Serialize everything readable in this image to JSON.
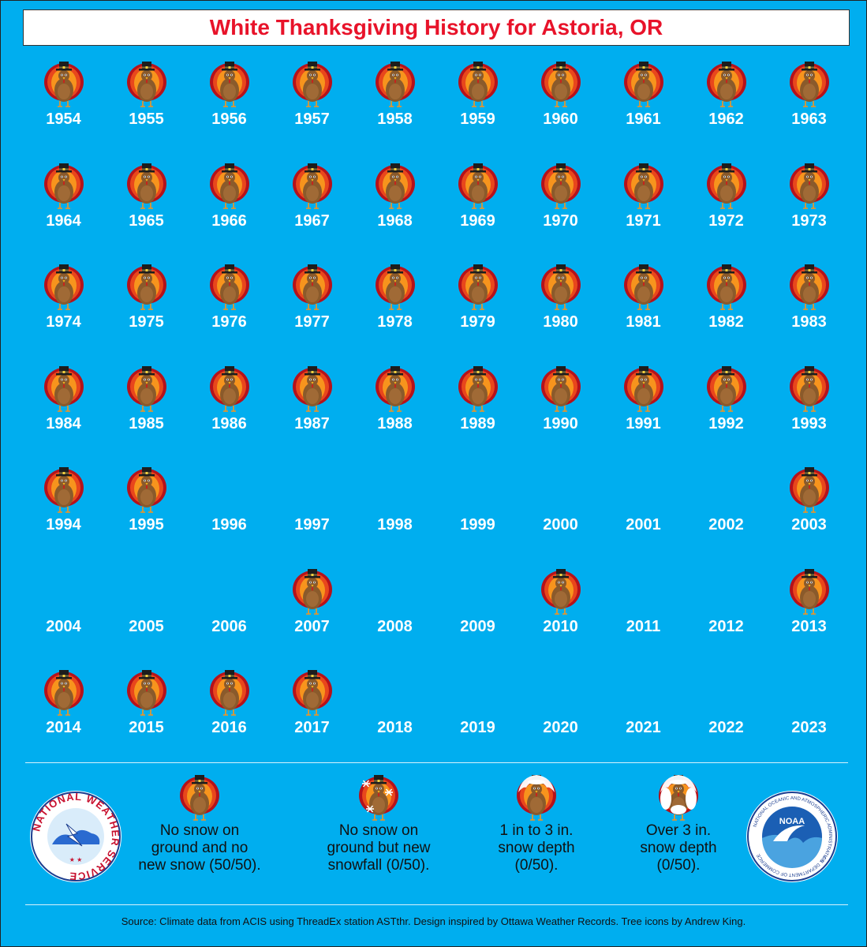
{
  "title": "White Thanksgiving History for Astoria, OR",
  "years": [
    {
      "year": "1954",
      "category": "no-snow"
    },
    {
      "year": "1955",
      "category": "no-snow"
    },
    {
      "year": "1956",
      "category": "no-snow"
    },
    {
      "year": "1957",
      "category": "no-snow"
    },
    {
      "year": "1958",
      "category": "no-snow"
    },
    {
      "year": "1959",
      "category": "no-snow"
    },
    {
      "year": "1960",
      "category": "no-snow"
    },
    {
      "year": "1961",
      "category": "no-snow"
    },
    {
      "year": "1962",
      "category": "no-snow"
    },
    {
      "year": "1963",
      "category": "no-snow"
    },
    {
      "year": "1964",
      "category": "no-snow"
    },
    {
      "year": "1965",
      "category": "no-snow"
    },
    {
      "year": "1966",
      "category": "no-snow"
    },
    {
      "year": "1967",
      "category": "no-snow"
    },
    {
      "year": "1968",
      "category": "no-snow"
    },
    {
      "year": "1969",
      "category": "no-snow"
    },
    {
      "year": "1970",
      "category": "no-snow"
    },
    {
      "year": "1971",
      "category": "no-snow"
    },
    {
      "year": "1972",
      "category": "no-snow"
    },
    {
      "year": "1973",
      "category": "no-snow"
    },
    {
      "year": "1974",
      "category": "no-snow"
    },
    {
      "year": "1975",
      "category": "no-snow"
    },
    {
      "year": "1976",
      "category": "no-snow"
    },
    {
      "year": "1977",
      "category": "no-snow"
    },
    {
      "year": "1978",
      "category": "no-snow"
    },
    {
      "year": "1979",
      "category": "no-snow"
    },
    {
      "year": "1980",
      "category": "no-snow"
    },
    {
      "year": "1981",
      "category": "no-snow"
    },
    {
      "year": "1982",
      "category": "no-snow"
    },
    {
      "year": "1983",
      "category": "no-snow"
    },
    {
      "year": "1984",
      "category": "no-snow"
    },
    {
      "year": "1985",
      "category": "no-snow"
    },
    {
      "year": "1986",
      "category": "no-snow"
    },
    {
      "year": "1987",
      "category": "no-snow"
    },
    {
      "year": "1988",
      "category": "no-snow"
    },
    {
      "year": "1989",
      "category": "no-snow"
    },
    {
      "year": "1990",
      "category": "no-snow"
    },
    {
      "year": "1991",
      "category": "no-snow"
    },
    {
      "year": "1992",
      "category": "no-snow"
    },
    {
      "year": "1993",
      "category": "no-snow"
    },
    {
      "year": "1994",
      "category": "no-snow"
    },
    {
      "year": "1995",
      "category": "no-snow"
    },
    {
      "year": "1996",
      "category": "none"
    },
    {
      "year": "1997",
      "category": "none"
    },
    {
      "year": "1998",
      "category": "none"
    },
    {
      "year": "1999",
      "category": "none"
    },
    {
      "year": "2000",
      "category": "none"
    },
    {
      "year": "2001",
      "category": "none"
    },
    {
      "year": "2002",
      "category": "none"
    },
    {
      "year": "2003",
      "category": "no-snow"
    },
    {
      "year": "2004",
      "category": "none"
    },
    {
      "year": "2005",
      "category": "none"
    },
    {
      "year": "2006",
      "category": "none"
    },
    {
      "year": "2007",
      "category": "no-snow"
    },
    {
      "year": "2008",
      "category": "none"
    },
    {
      "year": "2009",
      "category": "none"
    },
    {
      "year": "2010",
      "category": "no-snow"
    },
    {
      "year": "2011",
      "category": "none"
    },
    {
      "year": "2012",
      "category": "none"
    },
    {
      "year": "2013",
      "category": "no-snow"
    },
    {
      "year": "2014",
      "category": "no-snow"
    },
    {
      "year": "2015",
      "category": "no-snow"
    },
    {
      "year": "2016",
      "category": "no-snow"
    },
    {
      "year": "2017",
      "category": "no-snow"
    },
    {
      "year": "2018",
      "category": "none"
    },
    {
      "year": "2019",
      "category": "none"
    },
    {
      "year": "2020",
      "category": "none"
    },
    {
      "year": "2021",
      "category": "none"
    },
    {
      "year": "2022",
      "category": "none"
    },
    {
      "year": "2023",
      "category": "none"
    }
  ],
  "legend": {
    "no_snow": {
      "line1": "No snow on",
      "line2": "ground and no",
      "line3": "new snow (50/50).",
      "icon": "turkey-icon"
    },
    "new_snowfall": {
      "line1": "No snow on",
      "line2": "ground but new",
      "line3": "snowfall (0/50).",
      "icon": "turkey-snowflakes-icon"
    },
    "one_to_three": {
      "line1": "1 in to 3 in.",
      "line2": "snow depth",
      "line3": "(0/50).",
      "icon": "turkey-light-snow-icon"
    },
    "over_three": {
      "line1": "Over 3 in.",
      "line2": "snow depth",
      "line3": "(0/50).",
      "icon": "turkey-snow-covered-icon"
    }
  },
  "logos": {
    "nws": {
      "text": "NATIONAL WEATHER SERVICE",
      "icon": "nws-logo-icon"
    },
    "noaa": {
      "text": "NOAA",
      "ring": "NATIONAL OCEANIC AND ATMOSPHERIC ADMINISTRATION",
      "ring2": "U.S. DEPARTMENT OF COMMERCE",
      "icon": "noaa-logo-icon"
    }
  },
  "source": "Source: Climate data from ACIS using ThreadEx station ASTthr. Design inspired by Ottawa Weather Records. Tree icons by Andrew King.",
  "colors": {
    "background": "#00aeef",
    "title": "#e8132a",
    "year_text": "#ffffff"
  }
}
